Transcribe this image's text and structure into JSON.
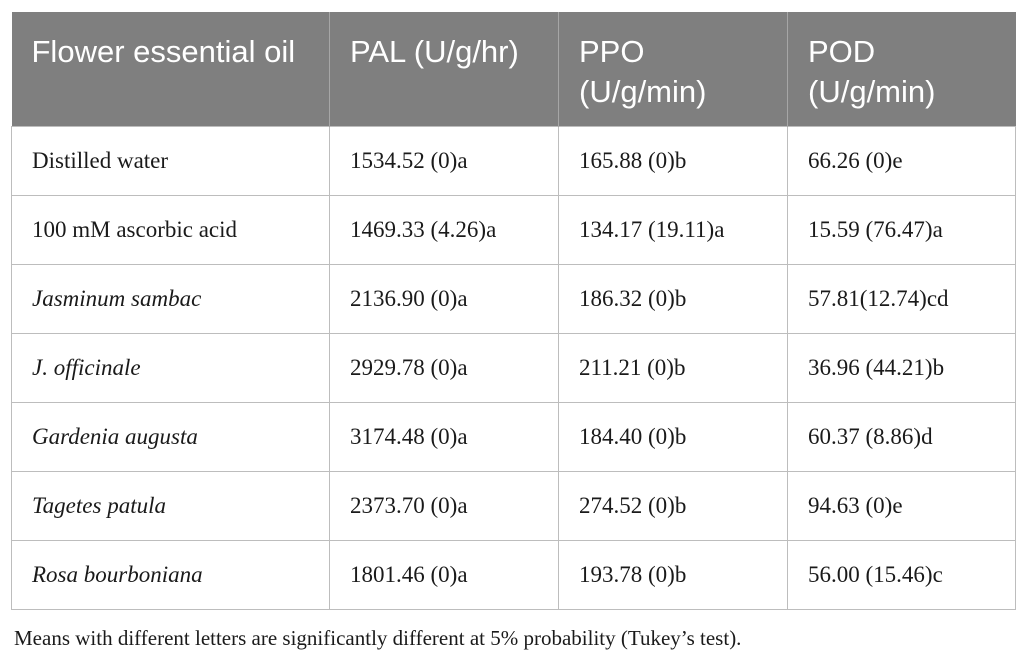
{
  "table": {
    "headers": [
      "Flower essential oil",
      "PAL (U/g/hr)",
      "PPO (U/g/min)",
      "POD (U/g/min)"
    ],
    "rows": [
      {
        "treatment": "Distilled water",
        "italic": false,
        "pal": "1534.52 (0)a",
        "ppo": "165.88 (0)b",
        "pod": "66.26 (0)e"
      },
      {
        "treatment": "100 mM ascorbic acid",
        "italic": false,
        "pal": "1469.33 (4.26)a",
        "ppo": "134.17 (19.11)a",
        "pod": "15.59 (76.47)a"
      },
      {
        "treatment": "Jasminum sambac",
        "italic": true,
        "pal": "2136.90 (0)a",
        "ppo": "186.32 (0)b",
        "pod": "57.81(12.74)cd"
      },
      {
        "treatment": "J. officinale",
        "italic": true,
        "pal": "2929.78 (0)a",
        "ppo": "211.21 (0)b",
        "pod": "36.96 (44.21)b"
      },
      {
        "treatment": "Gardenia augusta",
        "italic": true,
        "pal": "3174.48 (0)a",
        "ppo": "184.40 (0)b",
        "pod": "60.37 (8.86)d"
      },
      {
        "treatment": "Tagetes patula",
        "italic": true,
        "pal": "2373.70 (0)a",
        "ppo": "274.52 (0)b",
        "pod": "94.63 (0)e"
      },
      {
        "treatment": "Rosa bourboniana",
        "italic": true,
        "pal": "1801.46 (0)a",
        "ppo": "193.78 (0)b",
        "pod": "56.00 (15.46)c"
      }
    ]
  },
  "footnote": "Means with different letters are significantly different at 5% probability (Tukey’s test).",
  "colors": {
    "header_bg": "#7f7f7f",
    "header_text": "#ffffff",
    "grid": "#bdbdbd"
  }
}
